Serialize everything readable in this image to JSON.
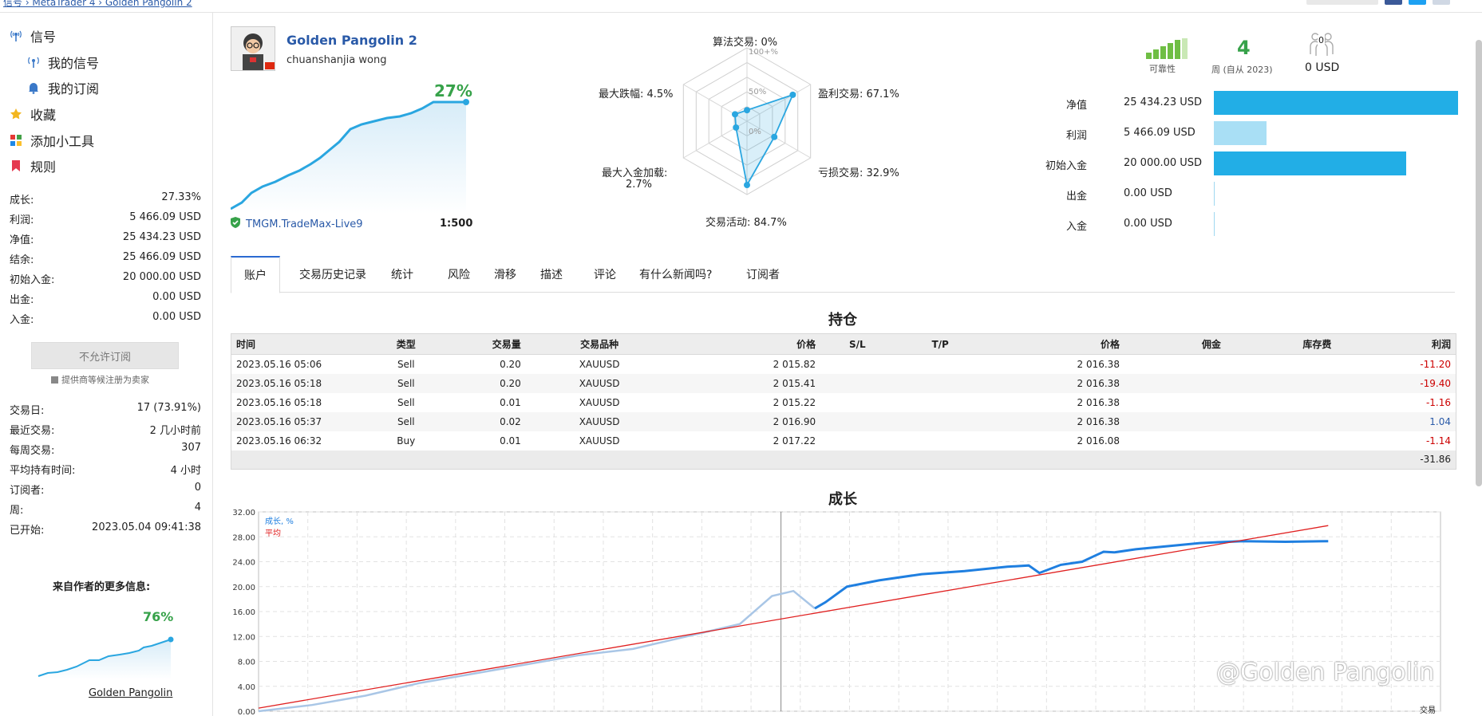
{
  "breadcrumb": {
    "path": "信号 › MetaTrader 4 › Golden Pangolin 2"
  },
  "sidebar": {
    "nav": [
      {
        "label": "信号",
        "icon": "signal-icon"
      },
      {
        "label": "我的信号",
        "icon": "broadcast-icon"
      },
      {
        "label": "我的订阅",
        "icon": "bell-icon"
      },
      {
        "label": "收藏",
        "icon": "star-icon"
      },
      {
        "label": "添加小工具",
        "icon": "widgets-icon"
      },
      {
        "label": "规则",
        "icon": "bookmark-icon"
      }
    ],
    "stats1": [
      {
        "k": "成长:",
        "v": "27.33%"
      },
      {
        "k": "利润:",
        "v": "5 466.09 USD"
      },
      {
        "k": "净值:",
        "v": "25 434.23 USD"
      },
      {
        "k": "结余:",
        "v": "25 466.09 USD"
      },
      {
        "k": "初始入金:",
        "v": "20 000.00 USD"
      },
      {
        "k": "出金:",
        "v": "0.00 USD"
      },
      {
        "k": "入金:",
        "v": "0.00 USD"
      }
    ],
    "subscribe_button": "不允许订阅",
    "subscribe_note": "提供商等候注册为卖家",
    "stats2": [
      {
        "k": "交易日:",
        "v": "17 (73.91%)"
      },
      {
        "k": "最近交易:",
        "v": "2 几小时前"
      },
      {
        "k": "每周交易:",
        "v": "307"
      },
      {
        "k": "平均持有时间:",
        "v": "4 小时"
      },
      {
        "k": "订阅者:",
        "v": "0"
      },
      {
        "k": "周:",
        "v": "4"
      },
      {
        "k": "已开始:",
        "v": "2023.05.04 09:41:38"
      }
    ],
    "more_title": "来自作者的更多信息:",
    "more_pct": "76%",
    "more_link": "Golden Pangolin"
  },
  "signal": {
    "name": "Golden Pangolin 2",
    "author": "chuanshanjia wong",
    "growth": "27%",
    "broker": "TMGM.TradeMax-Live9",
    "leverage": "1:500"
  },
  "radar": {
    "labels": {
      "top": "算法交易: 0%",
      "top_right": "盈利交易: 67.1%",
      "bottom_right": "亏损交易: 32.9%",
      "bottom": "交易活动: 84.7%",
      "bottom_left_1": "最大入金加载:",
      "bottom_left_2": "2.7%",
      "top_left": "最大跌幅: 4.5%"
    },
    "scale": [
      "100+%",
      "50%",
      "0%"
    ],
    "values": [
      0,
      67.1,
      32.9,
      84.7,
      2.7,
      4.5
    ]
  },
  "summary": {
    "reliability_label": "可靠性",
    "weeks_value": "4",
    "weeks_label": "周 (自从 2023)",
    "subscribers_count": "0",
    "subscribers_value": "0 USD",
    "bars": [
      {
        "label": "净值",
        "value": "25 434.23 USD",
        "fraction": 1.0,
        "color": "#22aee6"
      },
      {
        "label": "利润",
        "value": "5 466.09 USD",
        "fraction": 0.215,
        "color": "#a9dff5"
      },
      {
        "label": "初始入金",
        "value": "20 000.00 USD",
        "fraction": 0.786,
        "color": "#22aee6"
      },
      {
        "label": "出金",
        "value": "0.00 USD",
        "fraction": 0,
        "color": "#22aee6"
      },
      {
        "label": "入金",
        "value": "0.00 USD",
        "fraction": 0,
        "color": "#22aee6"
      }
    ]
  },
  "tabs": [
    "账户",
    "交易历史记录",
    "统计",
    "风险",
    "滑移",
    "描述",
    "评论",
    "有什么新闻吗?",
    "订阅者"
  ],
  "positions": {
    "title": "持仓",
    "headers": [
      "时间",
      "类型",
      "交易量",
      "交易品种",
      "价格",
      "S/L",
      "T/P",
      "价格",
      "佣金",
      "库存费",
      "利润"
    ],
    "rows": [
      [
        "2023.05.16 05:06",
        "Sell",
        "0.20",
        "XAUUSD",
        "2 015.82",
        "",
        "",
        "2 016.38",
        "",
        "",
        "-11.20"
      ],
      [
        "2023.05.16 05:18",
        "Sell",
        "0.20",
        "XAUUSD",
        "2 015.41",
        "",
        "",
        "2 016.38",
        "",
        "",
        "-19.40"
      ],
      [
        "2023.05.16 05:18",
        "Sell",
        "0.01",
        "XAUUSD",
        "2 015.22",
        "",
        "",
        "2 016.38",
        "",
        "",
        "-1.16"
      ],
      [
        "2023.05.16 05:37",
        "Sell",
        "0.02",
        "XAUUSD",
        "2 016.90",
        "",
        "",
        "2 016.38",
        "",
        "",
        "1.04"
      ],
      [
        "2023.05.16 06:32",
        "Buy",
        "0.01",
        "XAUUSD",
        "2 017.22",
        "",
        "",
        "2 016.08",
        "",
        "",
        "-1.14"
      ]
    ],
    "total": "-31.86"
  },
  "growth_chart": {
    "title": "成长",
    "legend_growth": "成长, %",
    "legend_avg": "平均",
    "x_label": "交易",
    "watermark": "@Golden Pangolin"
  },
  "chart_data": {
    "type": "line",
    "title": "成长",
    "ylim": [
      0,
      32
    ],
    "yticks": [
      "32.00",
      "28.00",
      "24.00",
      "20.00",
      "16.00",
      "12.00",
      "8.00",
      "4.00",
      "0.00"
    ],
    "grid": true,
    "legend": "top-left",
    "series": [
      {
        "name": "成长, %",
        "color": "#1f7fe0",
        "x": [
          0,
          5,
          10,
          15,
          20,
          25,
          30,
          35,
          40,
          45,
          48,
          50,
          52,
          53,
          55,
          58,
          62,
          66,
          70,
          72,
          73,
          75,
          77,
          78,
          79,
          80,
          82,
          85,
          88,
          92,
          96,
          100
        ],
        "values": [
          0,
          1,
          2.5,
          4.5,
          6,
          7.5,
          9,
          10,
          12,
          14,
          18.5,
          19.3,
          16.5,
          17.5,
          20,
          21,
          22,
          22.5,
          23.2,
          23.4,
          22.2,
          23.5,
          24,
          24.8,
          25.6,
          25.5,
          26,
          26.5,
          27,
          27.3,
          27.2,
          27.3
        ]
      },
      {
        "name": "平均",
        "color": "#e02020",
        "x": [
          0,
          100
        ],
        "values": [
          0.5,
          29.8
        ]
      }
    ]
  }
}
